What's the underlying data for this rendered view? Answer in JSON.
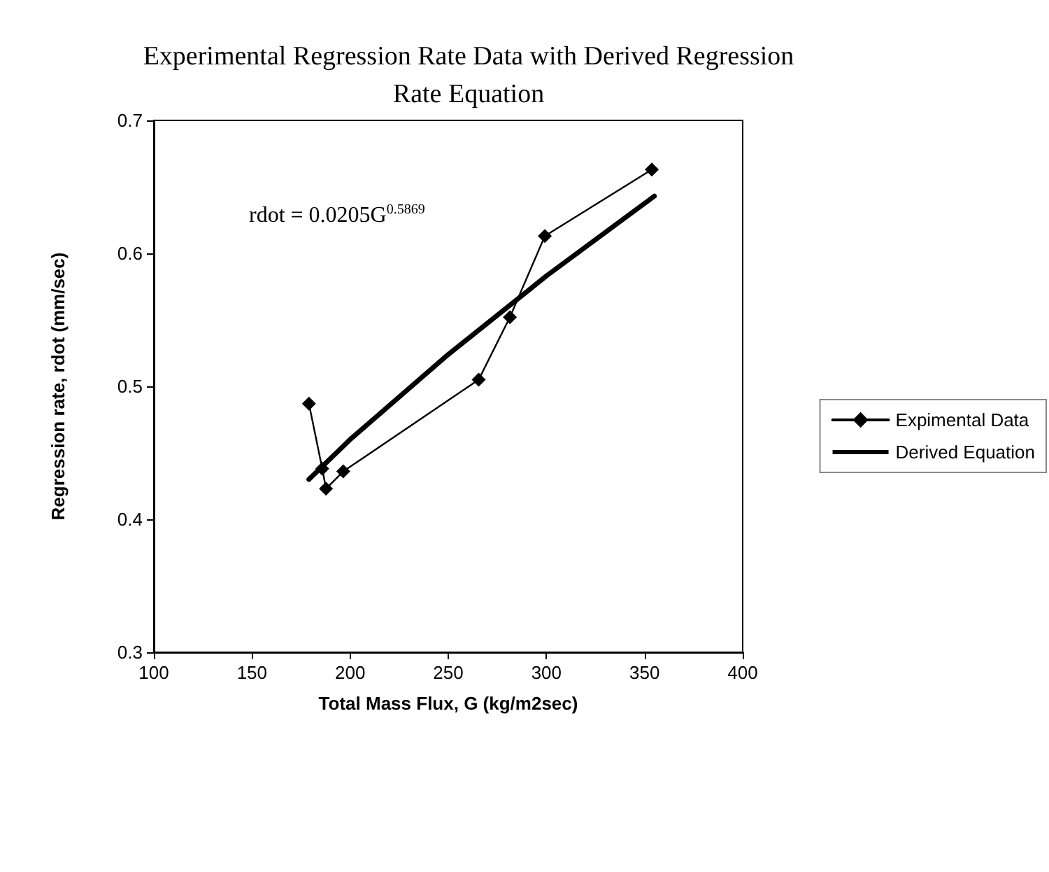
{
  "chart_data": {
    "type": "line",
    "title": "Experimental Regression Rate Data with Derived Regression\nRate Equation",
    "xlabel": "Total Mass Flux, G (kg/m2sec)",
    "ylabel": "Regression rate, rdot (mm/sec)",
    "xlim": [
      100,
      400
    ],
    "xticks": [
      100,
      150,
      200,
      250,
      300,
      350,
      400
    ],
    "ylim": [
      0.3,
      0.7
    ],
    "yticks": [
      0.3,
      0.4,
      0.5,
      0.6,
      0.7
    ],
    "grid": false,
    "legend": "right",
    "annotations": [
      "rdot = 0.0205G$^{0.5869}$"
    ],
    "series": [
      {
        "name": "Expimental Data",
        "color": "#000000",
        "marker": "diamond",
        "x": [
          179,
          185.8,
          187.7,
          196.5,
          265.5,
          281.4,
          299.2,
          353.7
        ],
        "values": [
          0.487,
          0.438,
          0.423,
          0.436,
          0.505,
          0.552,
          0.613,
          0.663
        ]
      },
      {
        "name": "Derived Equation",
        "color": "#000000",
        "marker": "none",
        "x": [
          179,
          200,
          250,
          300,
          355
        ],
        "values": [
          0.43,
          0.46,
          0.524,
          0.583,
          0.643
        ]
      }
    ]
  }
}
